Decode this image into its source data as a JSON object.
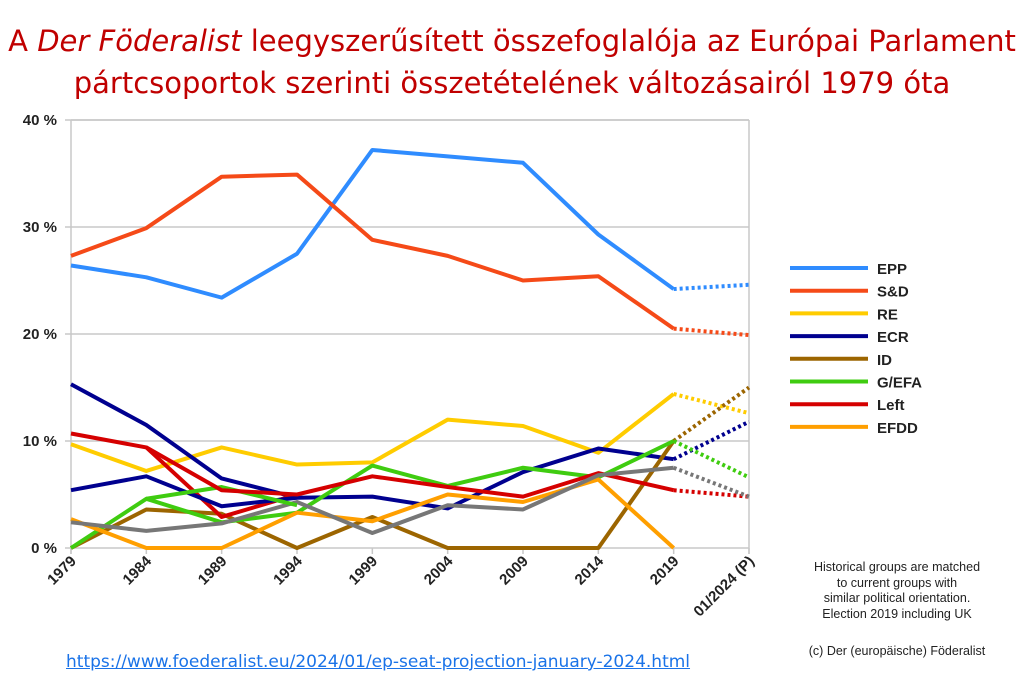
{
  "title": {
    "line1_prefix": "A ",
    "line1_italic": "Der Föderalist",
    "line1_suffix": " leegyszerűsített összefoglalója az Európai Parlament",
    "line2": "pártcsoportok szerinti összetételének változásairól 1979 óta"
  },
  "note": {
    "lines": [
      "Historical groups are matched",
      "to current groups with",
      "similar political orientation.",
      "Election 2019 including UK"
    ],
    "copyright": "(c) Der (europäische) Föderalist"
  },
  "link": "https://www.foederalist.eu/2024/01/ep-seat-projection-january-2024.html",
  "chart_data": {
    "type": "line",
    "title": "A Der Föderalist leegyszerűsített összefoglalója az Európai Parlament pártcsoportok szerinti összetételének változásairól 1979 óta",
    "xlabel": "",
    "ylabel": "",
    "categories": [
      "1979",
      "1984",
      "1989",
      "1994",
      "1999",
      "2004",
      "2009",
      "2014",
      "2019",
      "01/2024 (P)"
    ],
    "yticks": [
      "0 %",
      "10 %",
      "20 %",
      "30 %",
      "40 %"
    ],
    "ylim": [
      0,
      40
    ],
    "grid": true,
    "legend_position": "right",
    "series": [
      {
        "name": "EPP",
        "color": "#2f8cff",
        "values": [
          26.4,
          25.3,
          23.4,
          27.5,
          37.2,
          36.6,
          36.0,
          29.3,
          24.2,
          24.6
        ]
      },
      {
        "name": "S&D",
        "color": "#f54a18",
        "values": [
          27.3,
          29.9,
          34.7,
          34.9,
          28.8,
          27.3,
          25.0,
          25.4,
          20.5,
          19.9
        ]
      },
      {
        "name": "RE",
        "color": "#ffcc00",
        "values": [
          9.7,
          7.2,
          9.4,
          7.8,
          8.0,
          12.0,
          11.4,
          8.9,
          14.4,
          12.6
        ]
      },
      {
        "name": "ECR",
        "color": "#00008f",
        "values": [
          15.3,
          11.5,
          6.5,
          4.7,
          4.8,
          3.7,
          7.1,
          9.3,
          8.3,
          11.8
        ]
      },
      {
        "name": "ID",
        "color": "#9c6500",
        "values": [
          0,
          3.6,
          3.2,
          0,
          2.9,
          0,
          0,
          0,
          10.0,
          15.0
        ]
      },
      {
        "name": "G/EFA",
        "color": "#3fcc10",
        "values": [
          0,
          4.6,
          2.4,
          3.3,
          7.7,
          5.8,
          7.5,
          6.6,
          10.0,
          6.6
        ]
      },
      {
        "name": "Left",
        "color": "#d50000",
        "values": [
          10.7,
          9.4,
          2.9,
          5.0,
          6.7,
          5.7,
          4.8,
          7.0,
          5.4,
          4.8
        ]
      },
      {
        "name": "EFDD",
        "color": "#ff9f00",
        "values": [
          2.7,
          0,
          0,
          3.3,
          2.5,
          5.0,
          4.3,
          6.4,
          0,
          null
        ]
      },
      {
        "legend": false,
        "color": "#777777",
        "values": [
          2.4,
          1.6,
          2.3,
          4.3,
          1.4,
          4.0,
          3.6,
          6.8,
          7.5,
          4.8
        ]
      },
      {
        "legend": false,
        "color": "#00008f",
        "values": [
          5.4,
          6.7,
          3.9,
          4.7,
          null,
          null,
          null,
          null,
          null,
          null
        ]
      },
      {
        "legend": false,
        "color": "#3fcc10",
        "values": [
          null,
          4.6,
          5.7,
          4.0,
          null,
          null,
          null,
          null,
          null,
          null
        ]
      },
      {
        "legend": false,
        "color": "#d50000",
        "values": [
          null,
          9.4,
          5.4,
          5.0,
          null,
          null,
          null,
          null,
          null,
          null
        ]
      }
    ]
  }
}
